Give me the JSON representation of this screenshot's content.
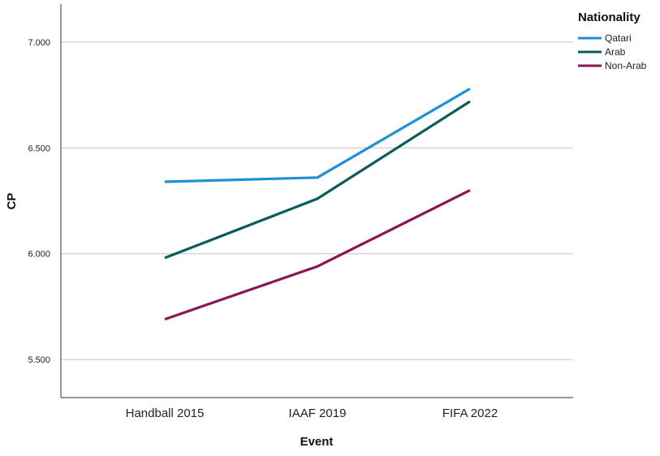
{
  "chart_data": {
    "type": "line",
    "xlabel": "Event",
    "ylabel": "CP",
    "categories": [
      "Handball 2015",
      "IAAF 2019",
      "FIFA 2022"
    ],
    "ylim": [
      5.32,
      7.18
    ],
    "yticks": [
      5.5,
      6.0,
      6.5,
      7.0
    ],
    "ytick_labels": [
      "5.500",
      "6.000",
      "6.500",
      "7.000"
    ],
    "grid": true,
    "legend": {
      "title": "Nationality",
      "placement": "top-right"
    },
    "series": [
      {
        "name": "Qatari",
        "color": "#1f8fd6",
        "values": [
          6.34,
          6.36,
          6.78
        ]
      },
      {
        "name": "Arab",
        "color": "#0e5c5a",
        "values": [
          5.98,
          6.26,
          6.72
        ]
      },
      {
        "name": "Non-Arab",
        "color": "#8c1650",
        "values": [
          5.69,
          5.94,
          6.3
        ]
      }
    ]
  }
}
